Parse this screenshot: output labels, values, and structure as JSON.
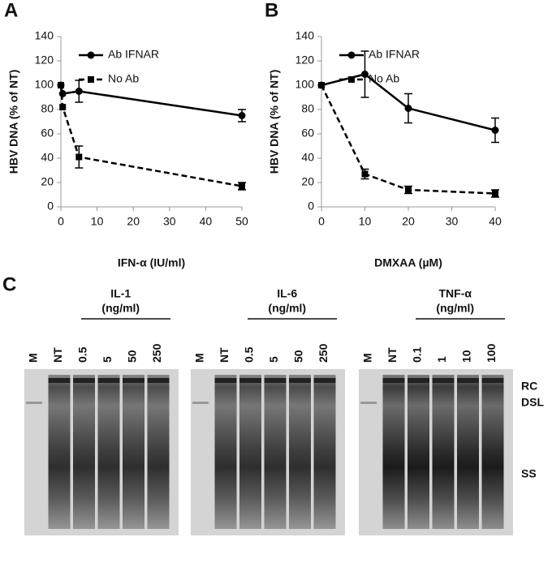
{
  "chart_data": [
    {
      "type": "line",
      "panel": "A",
      "xlabel": "IFN-α (IU/ml)",
      "ylabel": "HBV DNA (% of NT)",
      "x": [
        0,
        0.5,
        5,
        50
      ],
      "xlim": [
        0,
        50
      ],
      "xticks": [
        0,
        10,
        20,
        30,
        40,
        50
      ],
      "ylim": [
        0,
        140
      ],
      "yticks": [
        0,
        20,
        40,
        60,
        80,
        100,
        120,
        140
      ],
      "grid": false,
      "legend": "upper right",
      "series": [
        {
          "name": "Ab IFNAR",
          "color": "#000000",
          "marker": "circle",
          "dash": false,
          "values": [
            100,
            93,
            95,
            75
          ],
          "errors": [
            null,
            null,
            9,
            5
          ]
        },
        {
          "name": "No Ab",
          "color": "#000000",
          "marker": "square",
          "dash": true,
          "values": [
            100,
            82,
            41,
            17
          ],
          "errors": [
            null,
            null,
            9,
            3
          ]
        }
      ]
    },
    {
      "type": "line",
      "panel": "B",
      "xlabel": "DMXAA (µM)",
      "ylabel": "HBV DNA (% of NT)",
      "x": [
        0,
        10,
        20,
        40
      ],
      "xlim": [
        0,
        40
      ],
      "xticks": [
        0,
        10,
        20,
        30,
        40
      ],
      "ylim": [
        0,
        140
      ],
      "yticks": [
        0,
        20,
        40,
        60,
        80,
        100,
        120,
        140
      ],
      "grid": false,
      "legend": "upper right",
      "series": [
        {
          "name": "Ab IFNAR",
          "color": "#000000",
          "marker": "circle",
          "dash": false,
          "values": [
            100,
            109,
            81,
            63
          ],
          "errors": [
            null,
            19,
            12,
            10
          ]
        },
        {
          "name": "No Ab",
          "color": "#000000",
          "marker": "square",
          "dash": true,
          "values": [
            100,
            27,
            14,
            11
          ],
          "errors": [
            null,
            4,
            3,
            3
          ]
        }
      ]
    }
  ],
  "gel": {
    "panel": "C",
    "bands": [
      "RC",
      "DSL",
      "SS"
    ],
    "blots": [
      {
        "title": "IL-1",
        "unit": "(ng/ml)",
        "lanes": [
          "M",
          "NT",
          "0.5",
          "5",
          "50",
          "250"
        ]
      },
      {
        "title": "IL-6",
        "unit": "(ng/ml)",
        "lanes": [
          "M",
          "NT",
          "0.5",
          "5",
          "50",
          "250"
        ]
      },
      {
        "title": "TNF-α",
        "unit": "(ng/ml)",
        "lanes": [
          "M",
          "NT",
          "0.1",
          "1",
          "10",
          "100"
        ]
      }
    ]
  }
}
